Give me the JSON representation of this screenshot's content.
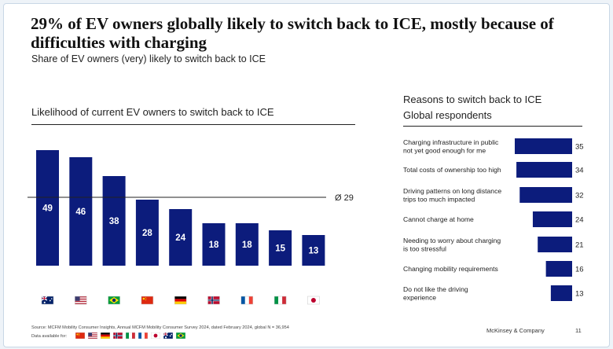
{
  "title": "29% of EV owners globally likely to switch back to ICE, mostly because of difficulties with charging",
  "subtitle": "Share of EV owners (very) likely to switch back to ICE",
  "left_heading": "Likelihood of current EV owners to switch back to ICE",
  "right_heading_1": "Reasons to switch back to ICE",
  "right_heading_2": "Global respondents",
  "average_label": "Ø 29",
  "footer_source": "Source: MCFM Mobility Consumer Insights, Annual MCFM Mobility Consumer Survey 2024, dated February 2024, global N = 36,954",
  "footer_available": "Data available for:",
  "company": "McKinsey & Company",
  "page_number": "11",
  "colors": {
    "bar": "#0c1c7c",
    "text": "#222222"
  },
  "flag_icons": [
    "australia-flag",
    "usa-flag",
    "brazil-flag",
    "china-flag",
    "germany-flag",
    "norway-flag",
    "france-flag",
    "italy-flag",
    "japan-flag"
  ],
  "footer_flag_icons": [
    "china-flag",
    "usa-flag",
    "germany-flag",
    "norway-flag",
    "italy-flag",
    "france-flag",
    "japan-flag",
    "australia-flag",
    "brazil-flag"
  ],
  "chart_data": [
    {
      "type": "bar",
      "title": "Likelihood of current EV owners to switch back to ICE",
      "categories": [
        "australia-flag",
        "usa-flag",
        "brazil-flag",
        "china-flag",
        "germany-flag",
        "norway-flag",
        "france-flag",
        "italy-flag",
        "japan-flag"
      ],
      "values": [
        49,
        46,
        38,
        28,
        24,
        18,
        18,
        15,
        13
      ],
      "average": 29,
      "ylim": [
        0,
        50
      ],
      "grid": false
    },
    {
      "type": "bar",
      "orientation": "horizontal",
      "title": "Reasons to switch back to ICE",
      "subtitle": "Global respondents",
      "categories": [
        "Charging infrastructure in public not yet good enough for me",
        "Total costs of ownership too high",
        "Driving patterns on long distance trips too much impacted",
        "Cannot charge at home",
        "Needing to worry about charging is too stressful",
        "Changing mobility requirements",
        "Do not like the driving experience"
      ],
      "values": [
        35,
        34,
        32,
        24,
        21,
        16,
        13
      ],
      "xlim": [
        0,
        35
      ],
      "grid": false
    }
  ]
}
